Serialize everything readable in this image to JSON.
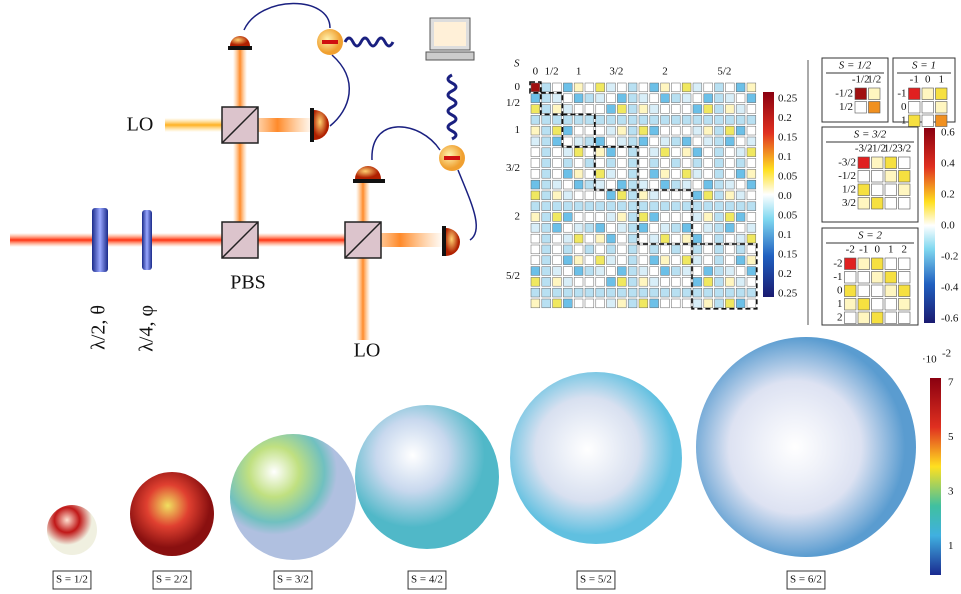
{
  "setup": {
    "lo_top": "LO",
    "lo_bottom": "LO",
    "pbs": "PBS",
    "half_wave": "λ/2, θ",
    "quarter_wave": "λ/4, φ"
  },
  "density_matrix": {
    "axis_label": "S",
    "spin_labels": [
      "0",
      "1/2",
      "1",
      "3/2",
      "2",
      "5/2"
    ],
    "colorbar_ticks": [
      "0.25",
      "0.2",
      "0.15",
      "0.1",
      "0.05",
      "0.0",
      "0.05",
      "0.1",
      "0.15",
      "0.2",
      "0.25"
    ]
  },
  "blocks": [
    {
      "title": "S = 1/2",
      "labels": [
        "-1/2",
        "1/2"
      ]
    },
    {
      "title": "S = 1",
      "labels": [
        "-1",
        "0",
        "1"
      ]
    },
    {
      "title": "S = 3/2",
      "labels": [
        "-3/2",
        "-1/2",
        "1/2",
        "3/2"
      ]
    },
    {
      "title": "S = 2",
      "labels": [
        "-2",
        "-1",
        "0",
        "1",
        "2"
      ]
    }
  ],
  "block_colorbar_ticks": [
    "0.6",
    "0.4",
    "0.2",
    "0.0",
    "-0.2",
    "-0.4",
    "-0.6"
  ],
  "spheres": {
    "scale": "·10",
    "exponent": "-2",
    "colorbar_ticks": [
      "7",
      "5",
      "3",
      "1"
    ],
    "labels": [
      "S = 1/2",
      "S = 2/2",
      "S = 3/2",
      "S = 4/2",
      "S = 5/2",
      "S = 6/2"
    ]
  }
}
